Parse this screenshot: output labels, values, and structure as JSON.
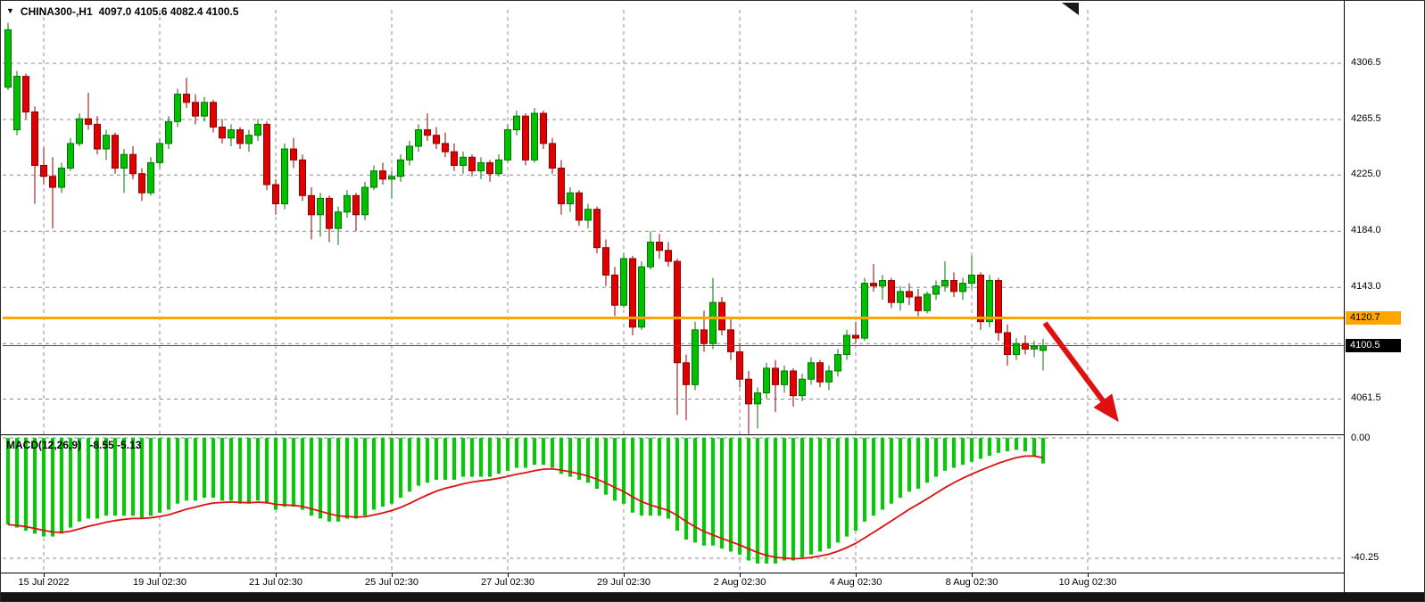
{
  "header": {
    "symbol": "CHINA300-,H1",
    "ohlc": "4097.0 4105.6 4082.4 4100.5"
  },
  "macd": {
    "title": "MACD(12,26,9)",
    "values": "-8.55 -5.13"
  },
  "colors": {
    "up": "#00C000",
    "up_stroke": "#007400",
    "down": "#E00000",
    "down_stroke": "#8E0000",
    "grid": "#8C8C8C",
    "hline": "#FFA500",
    "current_line": "#555555",
    "hist": "#00CE00",
    "signal": "#DD1111",
    "arrow": "#E01010"
  },
  "chart_data": {
    "type": "candlestick",
    "symbol": "CHINA300-",
    "timeframe": "H1",
    "title": "CHINA300-,H1 4097.0 4105.6 4082.4 4100.5",
    "price_axis_labels": [
      4306.5,
      4265.5,
      4225.0,
      4184.0,
      4143.0,
      4061.5
    ],
    "price_gridlines": [
      4306.5,
      4265.5,
      4225.0,
      4184.0,
      4143.0,
      4102.0,
      4061.5
    ],
    "time_gridlines": [
      {
        "label": "15 Jul 2022",
        "bar_index": 4
      },
      {
        "label": "19 Jul 02:30",
        "bar_index": 17
      },
      {
        "label": "21 Jul 02:30",
        "bar_index": 30
      },
      {
        "label": "25 Jul 02:30",
        "bar_index": 43
      },
      {
        "label": "27 Jul 02:30",
        "bar_index": 56
      },
      {
        "label": "29 Jul 02:30",
        "bar_index": 69
      },
      {
        "label": "2 Aug 02:30",
        "bar_index": 82
      },
      {
        "label": "4 Aug 02:30",
        "bar_index": 95
      },
      {
        "label": "8 Aug 02:30",
        "bar_index": 108
      },
      {
        "label": "10 Aug 02:30",
        "bar_index": 121
      }
    ],
    "horizontal_line_price": 4120.7,
    "current_price": 4100.5,
    "last_bar_ohlc": [
      4097.0,
      4105.6,
      4082.4,
      4100.5
    ],
    "arrow_annotation": {
      "from_bar": 116,
      "from_price": 4117,
      "to_bar": 124,
      "to_price": 4049,
      "color": "#E01010"
    },
    "candles_ohlc": [
      [
        4289,
        4336,
        4287,
        4331
      ],
      [
        4258,
        4301,
        4254,
        4297
      ],
      [
        4297,
        4299,
        4266,
        4271
      ],
      [
        4271,
        4275,
        4204,
        4232
      ],
      [
        4232,
        4245,
        4218,
        4224
      ],
      [
        4224,
        4238,
        4186,
        4216
      ],
      [
        4216,
        4234,
        4212,
        4230
      ],
      [
        4230,
        4252,
        4228,
        4248
      ],
      [
        4248,
        4270,
        4246,
        4266
      ],
      [
        4266,
        4285,
        4258,
        4262
      ],
      [
        4262,
        4268,
        4240,
        4244
      ],
      [
        4244,
        4258,
        4236,
        4254
      ],
      [
        4254,
        4256,
        4226,
        4230
      ],
      [
        4230,
        4244,
        4212,
        4240
      ],
      [
        4240,
        4246,
        4222,
        4226
      ],
      [
        4226,
        4230,
        4206,
        4212
      ],
      [
        4212,
        4238,
        4210,
        4234
      ],
      [
        4234,
        4252,
        4230,
        4248
      ],
      [
        4248,
        4268,
        4244,
        4264
      ],
      [
        4264,
        4288,
        4260,
        4284
      ],
      [
        4284,
        4296,
        4274,
        4278
      ],
      [
        4278,
        4284,
        4262,
        4268
      ],
      [
        4268,
        4282,
        4264,
        4278
      ],
      [
        4278,
        4280,
        4256,
        4260
      ],
      [
        4260,
        4266,
        4248,
        4252
      ],
      [
        4252,
        4262,
        4246,
        4258
      ],
      [
        4258,
        4260,
        4244,
        4248
      ],
      [
        4248,
        4258,
        4242,
        4254
      ],
      [
        4254,
        4266,
        4250,
        4262
      ],
      [
        4262,
        4264,
        4214,
        4218
      ],
      [
        4218,
        4222,
        4196,
        4204
      ],
      [
        4204,
        4248,
        4200,
        4244
      ],
      [
        4244,
        4252,
        4230,
        4236
      ],
      [
        4236,
        4240,
        4206,
        4210
      ],
      [
        4210,
        4216,
        4178,
        4196
      ],
      [
        4196,
        4212,
        4180,
        4208
      ],
      [
        4208,
        4210,
        4176,
        4186
      ],
      [
        4186,
        4202,
        4174,
        4198
      ],
      [
        4198,
        4214,
        4194,
        4210
      ],
      [
        4210,
        4212,
        4184,
        4196
      ],
      [
        4196,
        4220,
        4192,
        4216
      ],
      [
        4216,
        4232,
        4214,
        4228
      ],
      [
        4228,
        4234,
        4218,
        4222
      ],
      [
        4222,
        4228,
        4208,
        4224
      ],
      [
        4224,
        4240,
        4220,
        4236
      ],
      [
        4236,
        4250,
        4232,
        4246
      ],
      [
        4246,
        4262,
        4242,
        4258
      ],
      [
        4258,
        4270,
        4250,
        4254
      ],
      [
        4254,
        4260,
        4244,
        4248
      ],
      [
        4248,
        4256,
        4238,
        4242
      ],
      [
        4242,
        4248,
        4228,
        4232
      ],
      [
        4232,
        4242,
        4226,
        4238
      ],
      [
        4238,
        4240,
        4224,
        4228
      ],
      [
        4228,
        4238,
        4222,
        4234
      ],
      [
        4234,
        4236,
        4220,
        4226
      ],
      [
        4226,
        4240,
        4224,
        4236
      ],
      [
        4236,
        4262,
        4234,
        4258
      ],
      [
        4258,
        4272,
        4254,
        4268
      ],
      [
        4268,
        4270,
        4232,
        4236
      ],
      [
        4236,
        4274,
        4234,
        4270
      ],
      [
        4270,
        4272,
        4244,
        4248
      ],
      [
        4248,
        4252,
        4226,
        4230
      ],
      [
        4230,
        4236,
        4196,
        4204
      ],
      [
        4204,
        4216,
        4198,
        4212
      ],
      [
        4212,
        4214,
        4188,
        4192
      ],
      [
        4192,
        4204,
        4186,
        4200
      ],
      [
        4200,
        4202,
        4168,
        4172
      ],
      [
        4172,
        4178,
        4144,
        4152
      ],
      [
        4152,
        4158,
        4122,
        4130
      ],
      [
        4130,
        4168,
        4128,
        4164
      ],
      [
        4164,
        4166,
        4108,
        4114
      ],
      [
        4114,
        4162,
        4112,
        4158
      ],
      [
        4158,
        4184,
        4156,
        4176
      ],
      [
        4176,
        4182,
        4164,
        4170
      ],
      [
        4170,
        4176,
        4158,
        4162
      ],
      [
        4162,
        4164,
        4050,
        4088
      ],
      [
        4088,
        4094,
        4046,
        4072
      ],
      [
        4072,
        4118,
        4068,
        4112
      ],
      [
        4112,
        4126,
        4096,
        4102
      ],
      [
        4102,
        4150,
        4098,
        4132
      ],
      [
        4132,
        4136,
        4108,
        4112
      ],
      [
        4112,
        4120,
        4090,
        4096
      ],
      [
        4096,
        4102,
        4070,
        4076
      ],
      [
        4076,
        4082,
        4036,
        4058
      ],
      [
        4058,
        4070,
        4040,
        4066
      ],
      [
        4066,
        4088,
        4062,
        4084
      ],
      [
        4084,
        4090,
        4052,
        4072
      ],
      [
        4072,
        4086,
        4066,
        4082
      ],
      [
        4082,
        4084,
        4056,
        4064
      ],
      [
        4064,
        4080,
        4060,
        4076
      ],
      [
        4076,
        4092,
        4072,
        4088
      ],
      [
        4088,
        4090,
        4070,
        4074
      ],
      [
        4074,
        4086,
        4068,
        4082
      ],
      [
        4082,
        4098,
        4078,
        4094
      ],
      [
        4094,
        4112,
        4090,
        4108
      ],
      [
        4108,
        4118,
        4102,
        4106
      ],
      [
        4106,
        4150,
        4104,
        4146
      ],
      [
        4146,
        4160,
        4140,
        4144
      ],
      [
        4144,
        4152,
        4134,
        4148
      ],
      [
        4148,
        4150,
        4128,
        4132
      ],
      [
        4132,
        4144,
        4126,
        4140
      ],
      [
        4140,
        4146,
        4130,
        4136
      ],
      [
        4136,
        4142,
        4122,
        4126
      ],
      [
        4126,
        4140,
        4124,
        4138
      ],
      [
        4138,
        4148,
        4134,
        4144
      ],
      [
        4144,
        4162,
        4140,
        4148
      ],
      [
        4148,
        4154,
        4136,
        4140
      ],
      [
        4140,
        4150,
        4134,
        4146
      ],
      [
        4146,
        4166,
        4142,
        4152
      ],
      [
        4152,
        4154,
        4112,
        4118
      ],
      [
        4118,
        4152,
        4114,
        4148
      ],
      [
        4148,
        4150,
        4104,
        4110
      ],
      [
        4110,
        4116,
        4086,
        4094
      ],
      [
        4094,
        4106,
        4090,
        4102
      ],
      [
        4102,
        4108,
        4094,
        4098
      ],
      [
        4098,
        4104,
        4092,
        4100
      ],
      [
        4097,
        4105.6,
        4082.4,
        4100.5
      ]
    ],
    "macd": {
      "params": "12,26,9",
      "current_macd": -8.55,
      "current_signal": -5.13,
      "axis": [
        0,
        -40.25
      ],
      "histogram": [
        -29,
        -30,
        -31,
        -32,
        -33,
        -33,
        -32,
        -30,
        -28,
        -27,
        -27,
        -26,
        -26,
        -26,
        -26,
        -27,
        -26,
        -25,
        -24,
        -22,
        -21,
        -21,
        -20,
        -20,
        -21,
        -21,
        -22,
        -22,
        -21,
        -22,
        -24,
        -23,
        -23,
        -24,
        -26,
        -27,
        -28,
        -28,
        -27,
        -27,
        -26,
        -24,
        -23,
        -22,
        -20,
        -18,
        -16,
        -15,
        -14,
        -14,
        -14,
        -13,
        -13,
        -13,
        -13,
        -12,
        -11,
        -10,
        -10,
        -9,
        -9,
        -10,
        -12,
        -13,
        -14,
        -15,
        -17,
        -19,
        -21,
        -22,
        -25,
        -26,
        -26,
        -26,
        -27,
        -31,
        -34,
        -35,
        -36,
        -36,
        -37,
        -38,
        -39,
        -41,
        -42,
        -42,
        -42,
        -41,
        -41,
        -40,
        -39,
        -38,
        -37,
        -35,
        -33,
        -31,
        -28,
        -26,
        -24,
        -22,
        -20,
        -18,
        -17,
        -15,
        -13,
        -11,
        -10,
        -9,
        -8,
        -7,
        -6,
        -5,
        -4.5,
        -4,
        -4.5,
        -6,
        -8.55
      ]
    }
  }
}
